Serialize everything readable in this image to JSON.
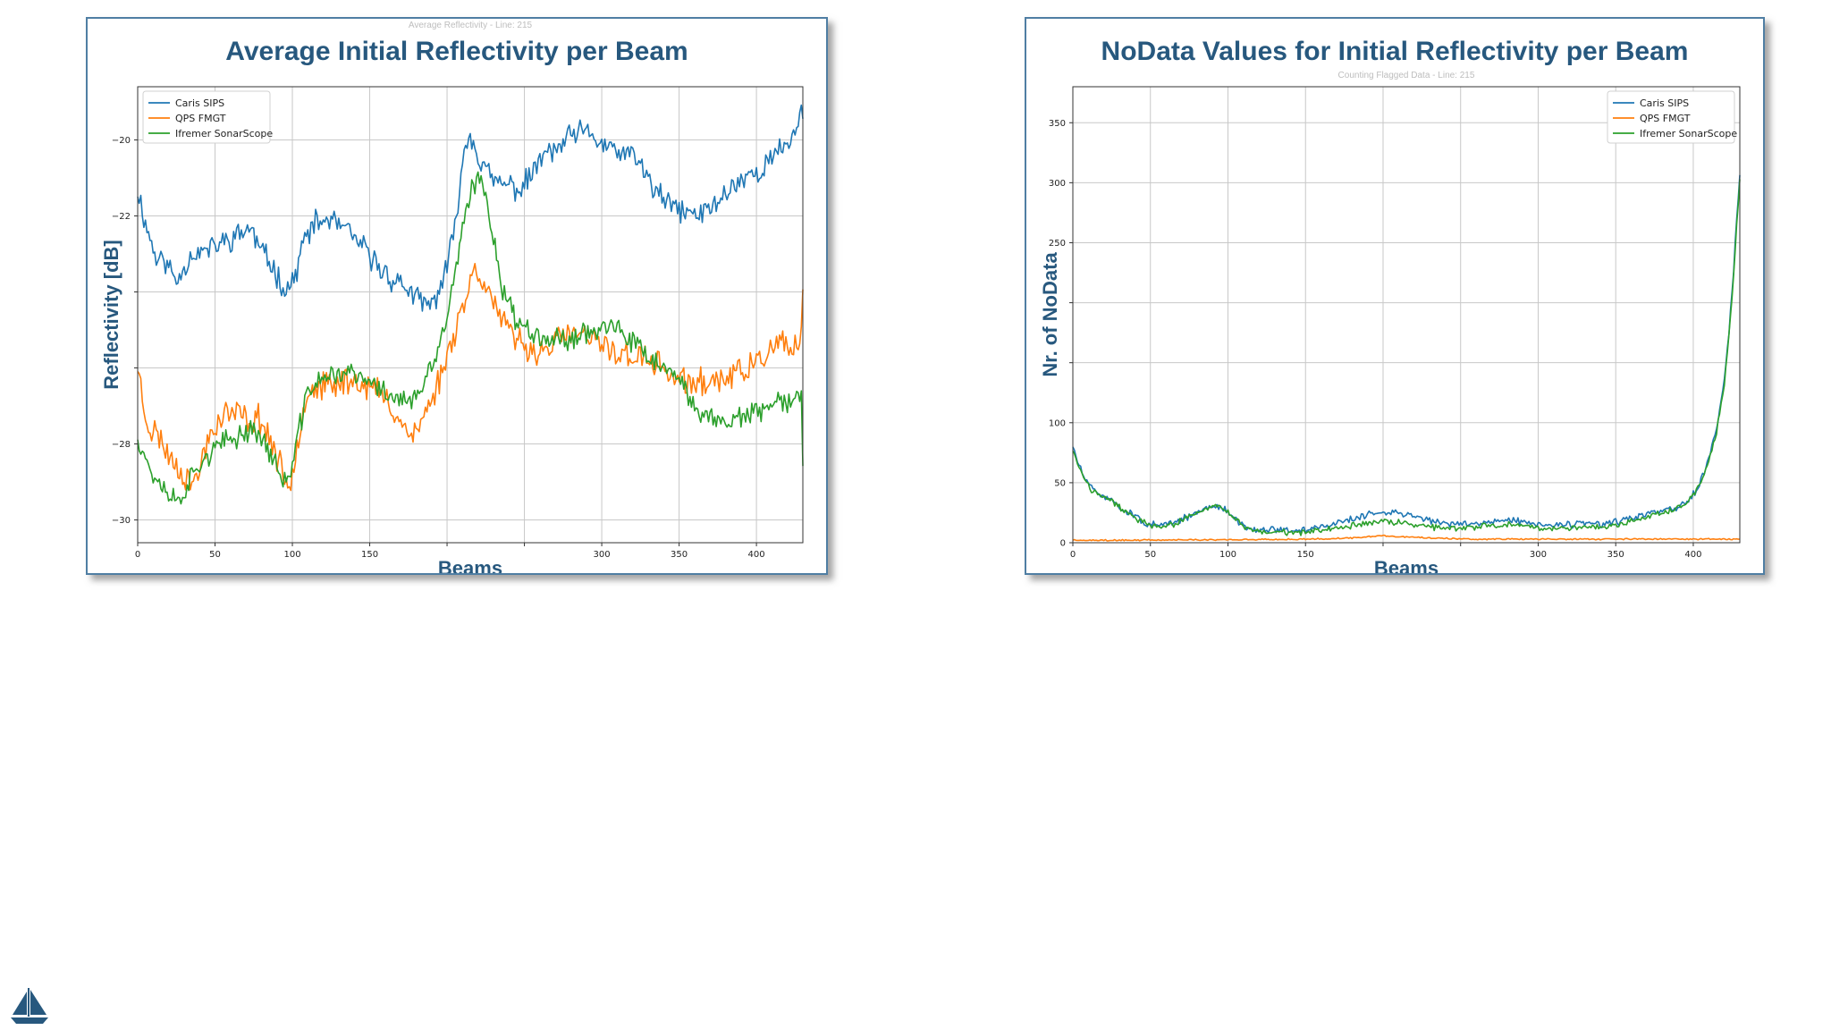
{
  "charts": [
    {
      "slide_title": "Average Initial Reflectivity per Beam",
      "ghost_subtitle": "Average Reflectivity - Line: 215"
    },
    {
      "slide_title": "NoData Values for Initial Reflectivity per Beam",
      "ghost_subtitle": "Counting Flagged Data - Line: 215"
    }
  ],
  "chart_data": [
    {
      "type": "line",
      "title": "Average Initial Reflectivity per Beam",
      "xlabel": "Beams",
      "ylabel": "Reflectivity [dB]",
      "xlim": [
        0,
        430
      ],
      "ylim": [
        -30.6,
        -18.6
      ],
      "x_ticks": [
        {
          "v": 0,
          "label": "0"
        },
        {
          "v": 50,
          "label": "50"
        },
        {
          "v": 100,
          "label": "100"
        },
        {
          "v": 150,
          "label": "150"
        },
        {
          "v": 200,
          "label": ""
        },
        {
          "v": 250,
          "label": ""
        },
        {
          "v": 300,
          "label": "300"
        },
        {
          "v": 350,
          "label": "350"
        },
        {
          "v": 400,
          "label": "400"
        }
      ],
      "y_ticks": [
        {
          "v": -30,
          "label": "−30"
        },
        {
          "v": -28,
          "label": "−28"
        },
        {
          "v": -26,
          "label": ""
        },
        {
          "v": -24,
          "label": ""
        },
        {
          "v": -22,
          "label": "−22"
        },
        {
          "v": -20,
          "label": "−20"
        }
      ],
      "grid": true,
      "legend_position": "top-left",
      "series": [
        {
          "name": "Caris SIPS",
          "color": "#1f77b4",
          "noise": 0.26,
          "seed": 11,
          "x": [
            0,
            5,
            12,
            18,
            25,
            35,
            45,
            55,
            65,
            72,
            80,
            88,
            95,
            100,
            108,
            115,
            125,
            135,
            145,
            155,
            165,
            172,
            180,
            190,
            195,
            200,
            205,
            210,
            215,
            222,
            230,
            240,
            248,
            255,
            262,
            270,
            280,
            290,
            300,
            308,
            318,
            325,
            332,
            340,
            348,
            355,
            362,
            370,
            378,
            385,
            392,
            398,
            405,
            412,
            418,
            425,
            430
          ],
          "y": [
            -21.3,
            -22.2,
            -23.1,
            -23.2,
            -23.7,
            -23.0,
            -22.9,
            -22.7,
            -22.5,
            -22.3,
            -22.9,
            -23.4,
            -23.9,
            -23.8,
            -22.6,
            -22.2,
            -22.1,
            -22.4,
            -22.8,
            -23.3,
            -23.7,
            -23.8,
            -24.2,
            -24.4,
            -23.9,
            -23.4,
            -22.3,
            -20.5,
            -19.8,
            -20.6,
            -21.1,
            -21.2,
            -21.3,
            -20.9,
            -20.4,
            -20.3,
            -19.9,
            -19.8,
            -20.1,
            -20.3,
            -20.4,
            -20.6,
            -21.2,
            -21.6,
            -21.8,
            -21.9,
            -22.0,
            -21.8,
            -21.5,
            -21.2,
            -21.0,
            -20.9,
            -20.7,
            -20.4,
            -20.2,
            -19.8,
            -19.2
          ]
        },
        {
          "name": "QPS FMGT",
          "color": "#ff7f0e",
          "noise": 0.3,
          "seed": 23,
          "x": [
            0,
            4,
            8,
            14,
            20,
            26,
            32,
            38,
            45,
            55,
            65,
            72,
            78,
            85,
            92,
            98,
            103,
            110,
            118,
            126,
            135,
            145,
            155,
            162,
            170,
            178,
            184,
            190,
            196,
            202,
            208,
            214,
            218,
            223,
            230,
            240,
            250,
            260,
            270,
            280,
            290,
            300,
            310,
            320,
            330,
            340,
            348,
            355,
            365,
            375,
            385,
            395,
            405,
            415,
            425,
            428,
            430
          ],
          "y": [
            -25.9,
            -27.1,
            -27.6,
            -27.8,
            -28.3,
            -28.6,
            -28.9,
            -29.0,
            -27.9,
            -27.2,
            -27.2,
            -27.4,
            -27.3,
            -27.8,
            -28.6,
            -29.2,
            -27.9,
            -26.6,
            -26.5,
            -26.5,
            -26.3,
            -26.4,
            -26.6,
            -26.9,
            -27.4,
            -27.8,
            -27.4,
            -26.8,
            -26.2,
            -25.4,
            -24.6,
            -23.9,
            -23.4,
            -23.6,
            -24.3,
            -25.1,
            -25.4,
            -25.6,
            -25.3,
            -25.1,
            -25.2,
            -25.4,
            -25.6,
            -25.7,
            -25.8,
            -26.0,
            -26.3,
            -26.4,
            -26.4,
            -26.3,
            -26.2,
            -26.0,
            -25.7,
            -25.4,
            -25.5,
            -25.7,
            -24.0
          ]
        },
        {
          "name": "Ifremer SonarScope",
          "color": "#2ca02c",
          "noise": 0.24,
          "seed": 37,
          "x": [
            0,
            4,
            8,
            14,
            20,
            26,
            32,
            38,
            45,
            55,
            65,
            72,
            78,
            85,
            92,
            98,
            103,
            110,
            118,
            126,
            135,
            145,
            155,
            162,
            170,
            178,
            186,
            192,
            198,
            204,
            210,
            216,
            222,
            228,
            236,
            245,
            255,
            265,
            275,
            285,
            295,
            305,
            315,
            322,
            330,
            340,
            350,
            360,
            370,
            380,
            390,
            400,
            410,
            420,
            426,
            429,
            430
          ],
          "y": [
            -27.8,
            -28.2,
            -28.7,
            -29.0,
            -29.3,
            -29.5,
            -29.1,
            -28.6,
            -28.3,
            -28.0,
            -27.8,
            -27.6,
            -27.7,
            -28.2,
            -28.8,
            -29.0,
            -27.9,
            -26.6,
            -26.3,
            -26.2,
            -26.1,
            -26.3,
            -26.5,
            -26.7,
            -26.8,
            -26.9,
            -26.4,
            -25.8,
            -25.0,
            -23.8,
            -22.4,
            -21.3,
            -21.0,
            -22.1,
            -23.9,
            -24.8,
            -25.0,
            -25.2,
            -25.3,
            -25.1,
            -25.0,
            -24.9,
            -25.2,
            -25.4,
            -25.7,
            -26.0,
            -26.4,
            -27.0,
            -27.3,
            -27.4,
            -27.3,
            -27.2,
            -27.0,
            -26.9,
            -26.7,
            -26.8,
            -28.8
          ]
        }
      ]
    },
    {
      "type": "line",
      "title": "NoData Values for Initial Reflectivity per Beam",
      "xlabel": "Beams",
      "ylabel": "Nr. of NoData",
      "xlim": [
        0,
        430
      ],
      "ylim": [
        0,
        380
      ],
      "x_ticks": [
        {
          "v": 0,
          "label": "0"
        },
        {
          "v": 50,
          "label": "50"
        },
        {
          "v": 100,
          "label": "100"
        },
        {
          "v": 150,
          "label": "150"
        },
        {
          "v": 200,
          "label": ""
        },
        {
          "v": 250,
          "label": ""
        },
        {
          "v": 300,
          "label": "300"
        },
        {
          "v": 350,
          "label": "350"
        },
        {
          "v": 400,
          "label": "400"
        }
      ],
      "y_ticks": [
        {
          "v": 0,
          "label": "0"
        },
        {
          "v": 50,
          "label": "50"
        },
        {
          "v": 100,
          "label": "100"
        },
        {
          "v": 150,
          "label": ""
        },
        {
          "v": 200,
          "label": ""
        },
        {
          "v": 250,
          "label": "250"
        },
        {
          "v": 300,
          "label": "300"
        },
        {
          "v": 350,
          "label": "350"
        }
      ],
      "grid": true,
      "legend_position": "top-right",
      "series": [
        {
          "name": "Caris SIPS",
          "color": "#1f77b4",
          "noise": 2.3,
          "seed": 51,
          "x": [
            0,
            3,
            7,
            12,
            18,
            25,
            32,
            40,
            48,
            55,
            62,
            70,
            78,
            85,
            92,
            98,
            103,
            110,
            120,
            130,
            140,
            150,
            160,
            170,
            180,
            190,
            200,
            210,
            220,
            230,
            240,
            250,
            260,
            270,
            280,
            290,
            300,
            310,
            320,
            330,
            340,
            350,
            360,
            370,
            380,
            390,
            395,
            400,
            405,
            410,
            415,
            420,
            423,
            426,
            428,
            430
          ],
          "y": [
            80,
            68,
            55,
            45,
            40,
            36,
            28,
            22,
            16,
            14,
            15,
            19,
            24,
            28,
            30,
            28,
            22,
            14,
            11,
            11,
            10,
            11,
            13,
            16,
            20,
            23,
            26,
            25,
            22,
            19,
            16,
            15,
            16,
            18,
            19,
            18,
            15,
            14,
            15,
            16,
            15,
            17,
            20,
            24,
            26,
            29,
            33,
            40,
            52,
            70,
            95,
            135,
            175,
            225,
            270,
            305
          ]
        },
        {
          "name": "QPS FMGT",
          "color": "#ff7f0e",
          "noise": 0.45,
          "seed": 63,
          "x": [
            0,
            100,
            150,
            180,
            200,
            210,
            230,
            260,
            300,
            350,
            400,
            430
          ],
          "y": [
            2,
            2.5,
            3,
            4,
            6,
            5,
            4,
            3,
            3,
            3,
            3,
            3
          ]
        },
        {
          "name": "Ifremer SonarScope",
          "color": "#2ca02c",
          "noise": 2.0,
          "seed": 77,
          "x": [
            0,
            3,
            7,
            12,
            18,
            25,
            32,
            40,
            48,
            55,
            62,
            70,
            78,
            85,
            92,
            98,
            103,
            110,
            120,
            130,
            140,
            150,
            160,
            170,
            180,
            190,
            200,
            210,
            220,
            230,
            240,
            250,
            260,
            270,
            280,
            290,
            300,
            310,
            320,
            330,
            340,
            350,
            360,
            370,
            380,
            390,
            395,
            400,
            405,
            410,
            415,
            420,
            423,
            426,
            428,
            430
          ],
          "y": [
            78,
            66,
            54,
            44,
            39,
            35,
            27,
            21,
            15,
            13,
            14,
            18,
            24,
            28,
            31,
            29,
            21,
            13,
            9,
            9,
            8,
            9,
            10,
            12,
            14,
            16,
            18,
            17,
            15,
            13,
            12,
            12,
            13,
            14,
            15,
            14,
            12,
            11,
            12,
            13,
            13,
            15,
            18,
            22,
            25,
            28,
            32,
            39,
            50,
            68,
            92,
            132,
            172,
            222,
            268,
            302
          ]
        }
      ]
    }
  ]
}
